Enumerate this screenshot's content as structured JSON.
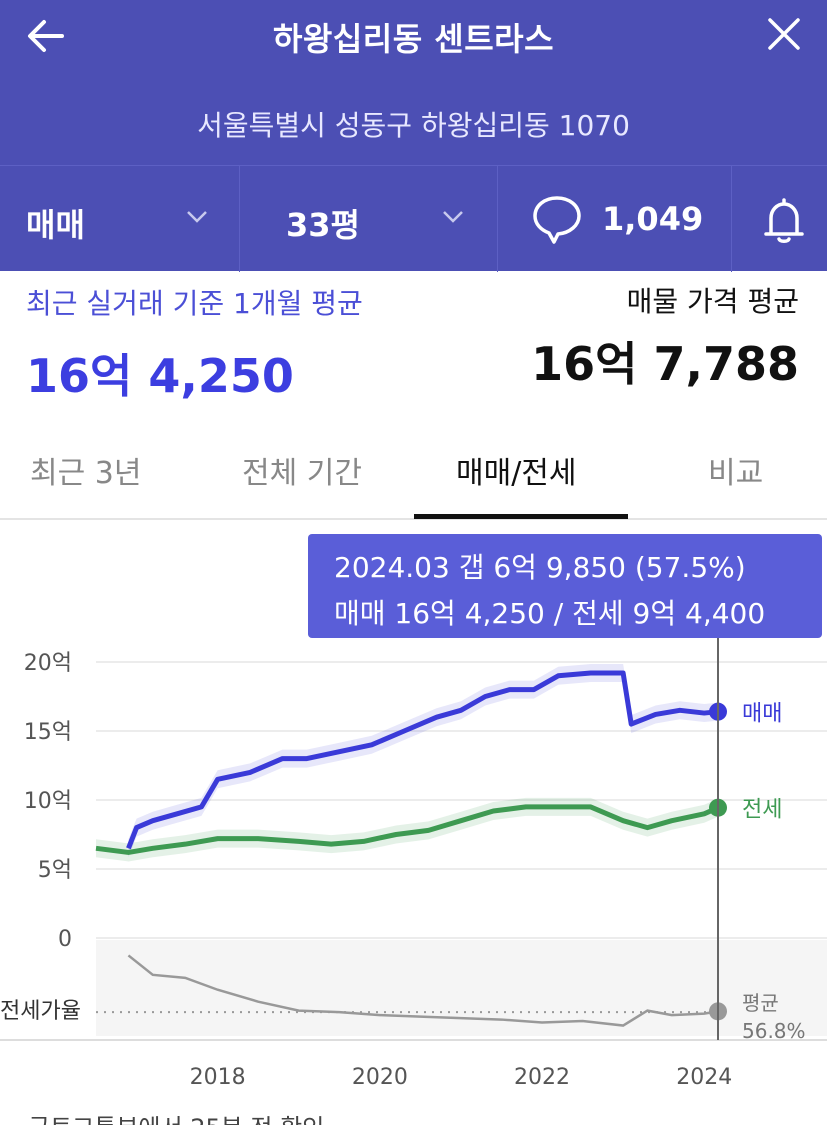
{
  "header": {
    "title": "하왕십리동 센트라스",
    "address": "서울특별시 성동구 하왕십리동 1070"
  },
  "toolbar": {
    "deal_type": "매매",
    "size": "33평",
    "comment_count": "1,049"
  },
  "summary": {
    "recent_label": "최근 실거래 기준 1개월 평균",
    "recent_value": "16억 4,250",
    "ask_label": "매물 가격 평균",
    "ask_value": "16억 7,788"
  },
  "tabs": [
    {
      "label": "최근 3년",
      "active": false
    },
    {
      "label": "전체 기간",
      "active": false
    },
    {
      "label": "매매/전세",
      "active": true
    },
    {
      "label": "비교",
      "active": false
    }
  ],
  "tooltip": {
    "line1": "2024.03  갭 6억 9,850 (57.5%)",
    "line2": "매매 16억 4,250 / 전세 9억 4,400"
  },
  "colors": {
    "header_bg": "#4c4fb4",
    "sale": "#3a3ad8",
    "jeonse": "#3e9a52",
    "ratio": "#999999",
    "tooltip_bg": "#5a5ed8"
  },
  "chart_data": {
    "type": "line",
    "y_ticks": [
      "20억",
      "15억",
      "10억",
      "5억",
      "0"
    ],
    "ylim": [
      0,
      20
    ],
    "x_ticks": [
      "2018",
      "2020",
      "2022",
      "2024"
    ],
    "series": [
      {
        "name": "매매",
        "x": [
          2016.9,
          2017.0,
          2017.2,
          2017.5,
          2017.8,
          2018.0,
          2018.4,
          2018.8,
          2019.1,
          2019.5,
          2019.9,
          2020.3,
          2020.7,
          2021.0,
          2021.3,
          2021.6,
          2021.9,
          2022.2,
          2022.6,
          2023.0,
          2023.1,
          2023.4,
          2023.7,
          2024.0,
          2024.17
        ],
        "y": [
          6.5,
          8.0,
          8.5,
          9.0,
          9.5,
          11.5,
          12.0,
          13.0,
          13.0,
          13.5,
          14.0,
          15.0,
          16.0,
          16.5,
          17.5,
          18.0,
          18.0,
          19.0,
          19.2,
          19.2,
          15.5,
          16.2,
          16.5,
          16.3,
          16.4
        ]
      },
      {
        "name": "전세",
        "x": [
          2016.5,
          2016.9,
          2017.2,
          2017.6,
          2018.0,
          2018.5,
          2019.0,
          2019.4,
          2019.8,
          2020.2,
          2020.6,
          2021.0,
          2021.4,
          2021.8,
          2022.2,
          2022.6,
          2023.0,
          2023.3,
          2023.6,
          2024.0,
          2024.17
        ],
        "y": [
          6.5,
          6.2,
          6.5,
          6.8,
          7.2,
          7.2,
          7.0,
          6.8,
          7.0,
          7.5,
          7.8,
          8.5,
          9.2,
          9.5,
          9.5,
          9.5,
          8.5,
          8.0,
          8.5,
          9.0,
          9.44
        ]
      }
    ],
    "ratio": {
      "label": "전세가율",
      "avg_label": "평균",
      "avg_value": "56.8%",
      "x": [
        2016.9,
        2017.2,
        2017.6,
        2018.0,
        2018.5,
        2019.0,
        2019.5,
        2020.0,
        2020.5,
        2021.0,
        2021.5,
        2022.0,
        2022.5,
        2023.0,
        2023.3,
        2023.6,
        2024.0,
        2024.17
      ],
      "y": [
        95,
        82,
        80,
        72,
        64,
        58,
        57,
        55,
        54,
        53,
        52,
        50,
        51,
        48,
        58,
        55,
        56,
        57.5
      ]
    },
    "cursor_x": 2024.17,
    "end_labels": [
      "매매",
      "전세"
    ]
  }
}
